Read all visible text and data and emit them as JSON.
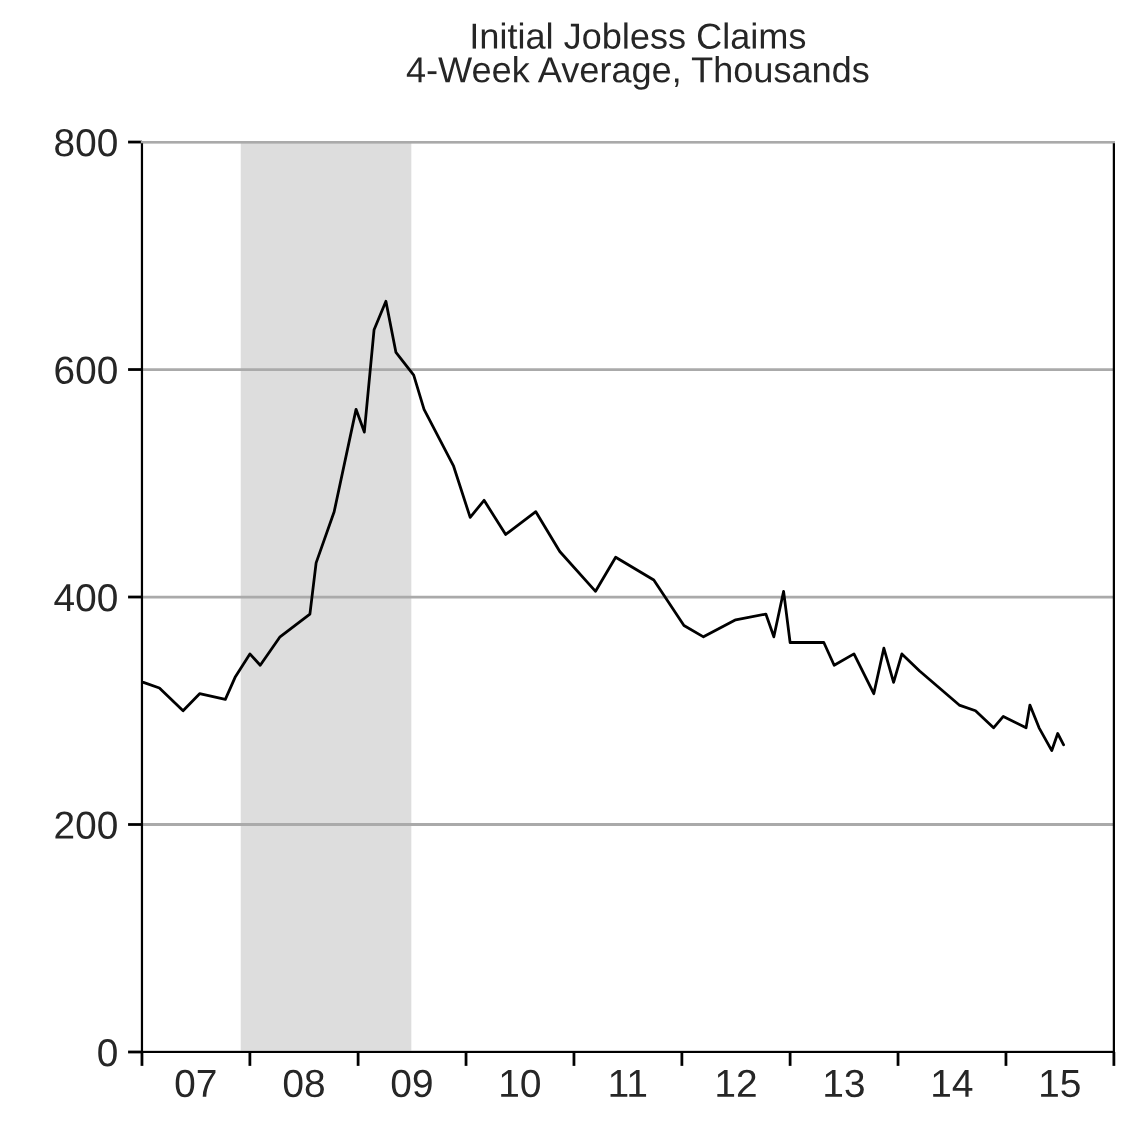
{
  "chart_data": {
    "type": "line",
    "title": "Initial Jobless Claims",
    "subtitle": "4-Week Average, Thousands",
    "x": [
      "2007-01-06",
      "2007-03-01",
      "2007-05-20",
      "2007-07-15",
      "2007-10-10",
      "2007-11-13",
      "2008-01-01",
      "2008-02-05",
      "2008-04-12",
      "2008-07-22",
      "2008-08-12",
      "2008-10-12",
      "2008-12-25",
      "2009-01-22",
      "2009-02-24",
      "2009-04-05",
      "2009-05-09",
      "2009-07-08",
      "2009-08-12",
      "2009-11-20",
      "2010-01-15",
      "2010-03-03",
      "2010-05-15",
      "2010-08-25",
      "2010-11-14",
      "2011-03-15",
      "2011-05-22",
      "2011-09-28",
      "2012-01-08",
      "2012-03-14",
      "2012-07-01",
      "2012-10-11",
      "2012-11-07",
      "2012-12-10",
      "2013-01-01",
      "2013-04-25",
      "2013-05-30",
      "2013-08-05",
      "2013-10-11",
      "2013-11-14",
      "2013-12-17",
      "2014-01-14",
      "2014-03-15",
      "2014-07-27",
      "2014-09-20",
      "2014-11-20",
      "2014-12-23",
      "2015-03-10",
      "2015-03-23",
      "2015-04-23",
      "2015-06-05",
      "2015-06-25",
      "2015-07-15"
    ],
    "series": [
      {
        "color": "#000000",
        "values": [
          325,
          320,
          300,
          315,
          310,
          330,
          350,
          340,
          365,
          385,
          430,
          475,
          565,
          545,
          635,
          660,
          615,
          595,
          565,
          515,
          470,
          485,
          455,
          475,
          440,
          405,
          435,
          415,
          375,
          365,
          380,
          385,
          365,
          405,
          360,
          360,
          340,
          350,
          315,
          355,
          325,
          350,
          335,
          305,
          300,
          285,
          295,
          285,
          305,
          285,
          265,
          280,
          270
        ]
      }
    ],
    "xlim": [
      "2007-01-01",
      "2016-01-01"
    ],
    "xticks": [
      {
        "value": "2007-01-01",
        "label": null
      },
      {
        "value": "2007-07-02",
        "label": "07"
      },
      {
        "value": "2008-01-01",
        "label": null
      },
      {
        "value": "2008-07-02",
        "label": "08"
      },
      {
        "value": "2009-01-01",
        "label": null
      },
      {
        "value": "2009-07-02",
        "label": "09"
      },
      {
        "value": "2010-01-01",
        "label": null
      },
      {
        "value": "2010-07-02",
        "label": "10"
      },
      {
        "value": "2011-01-01",
        "label": null
      },
      {
        "value": "2011-07-02",
        "label": "11"
      },
      {
        "value": "2012-01-01",
        "label": null
      },
      {
        "value": "2012-07-02",
        "label": "12"
      },
      {
        "value": "2013-01-01",
        "label": null
      },
      {
        "value": "2013-07-02",
        "label": "13"
      },
      {
        "value": "2014-01-01",
        "label": null
      },
      {
        "value": "2014-07-02",
        "label": "14"
      },
      {
        "value": "2015-01-01",
        "label": null
      },
      {
        "value": "2015-07-02",
        "label": "15"
      },
      {
        "value": "2016-01-01",
        "label": null
      }
    ],
    "ylim": [
      0,
      800
    ],
    "yticks": [
      0,
      200,
      400,
      600,
      800
    ],
    "bands": [
      {
        "axis": "x",
        "from": "2007-12-01",
        "to": "2009-06-30",
        "color": "#dddddd"
      }
    ],
    "grid": "y"
  }
}
